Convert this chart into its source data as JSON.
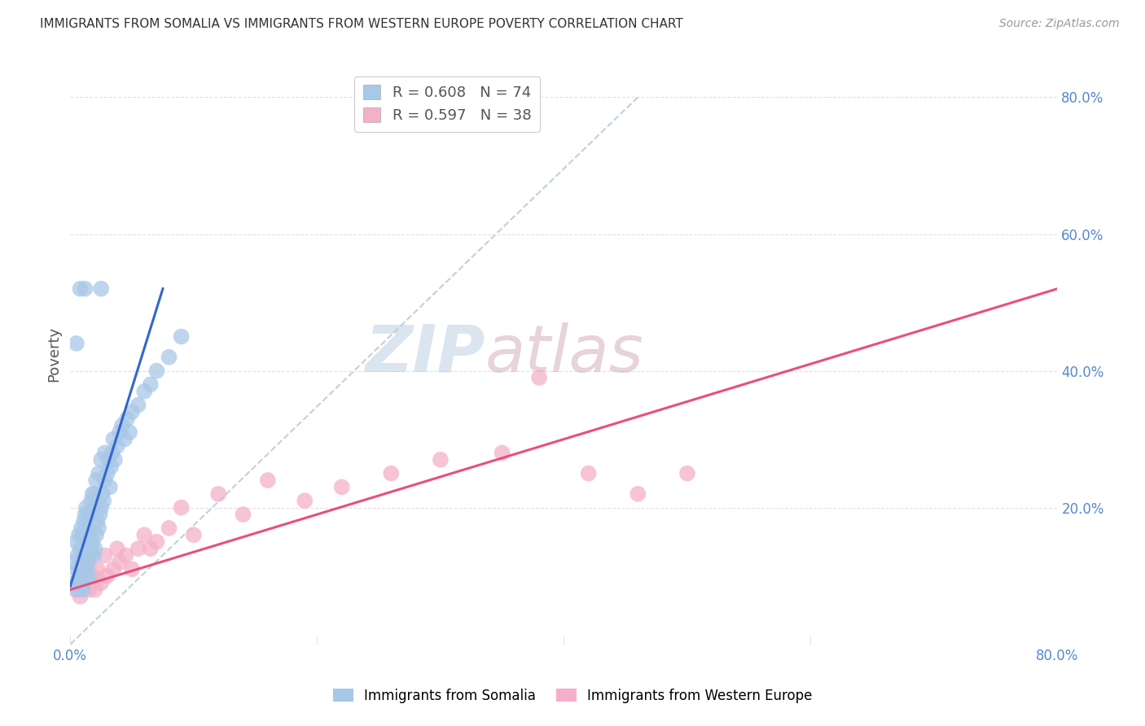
{
  "title": "IMMIGRANTS FROM SOMALIA VS IMMIGRANTS FROM WESTERN EUROPE POVERTY CORRELATION CHART",
  "source": "Source: ZipAtlas.com",
  "ylabel": "Poverty",
  "watermark_zip": "ZIP",
  "watermark_atlas": "atlas",
  "legend_line1": "R = 0.608   N = 74",
  "legend_line2": "R = 0.597   N = 38",
  "somalia_color": "#a8c8e8",
  "western_color": "#f4b0c8",
  "somalia_line_color": "#3366cc",
  "western_line_color": "#e8507a",
  "diagonal_color": "#c0d0e0",
  "background_color": "#ffffff",
  "grid_color": "#e0e0e0",
  "tick_color": "#5588cc",
  "xlim": [
    0.0,
    0.8
  ],
  "ylim": [
    0.0,
    0.85
  ],
  "title_fontsize": 11,
  "somalia_x": [
    0.003,
    0.004,
    0.005,
    0.005,
    0.006,
    0.006,
    0.007,
    0.007,
    0.008,
    0.008,
    0.009,
    0.009,
    0.01,
    0.01,
    0.01,
    0.011,
    0.011,
    0.011,
    0.012,
    0.012,
    0.012,
    0.013,
    0.013,
    0.013,
    0.014,
    0.014,
    0.015,
    0.015,
    0.016,
    0.016,
    0.017,
    0.017,
    0.018,
    0.018,
    0.019,
    0.019,
    0.02,
    0.02,
    0.021,
    0.021,
    0.022,
    0.023,
    0.023,
    0.024,
    0.025,
    0.025,
    0.026,
    0.027,
    0.028,
    0.028,
    0.03,
    0.031,
    0.032,
    0.033,
    0.034,
    0.035,
    0.036,
    0.038,
    0.04,
    0.042,
    0.044,
    0.046,
    0.048,
    0.05,
    0.055,
    0.06,
    0.065,
    0.07,
    0.08,
    0.09,
    0.005,
    0.008,
    0.012,
    0.025
  ],
  "somalia_y": [
    0.12,
    0.09,
    0.11,
    0.15,
    0.08,
    0.13,
    0.1,
    0.16,
    0.09,
    0.14,
    0.11,
    0.17,
    0.08,
    0.12,
    0.16,
    0.09,
    0.13,
    0.18,
    0.1,
    0.14,
    0.19,
    0.11,
    0.15,
    0.2,
    0.12,
    0.17,
    0.1,
    0.16,
    0.13,
    0.19,
    0.14,
    0.21,
    0.15,
    0.22,
    0.13,
    0.2,
    0.14,
    0.22,
    0.16,
    0.24,
    0.18,
    0.17,
    0.25,
    0.19,
    0.2,
    0.27,
    0.22,
    0.21,
    0.24,
    0.28,
    0.25,
    0.27,
    0.23,
    0.26,
    0.28,
    0.3,
    0.27,
    0.29,
    0.31,
    0.32,
    0.3,
    0.33,
    0.31,
    0.34,
    0.35,
    0.37,
    0.38,
    0.4,
    0.42,
    0.45,
    0.44,
    0.52,
    0.52,
    0.52
  ],
  "western_x": [
    0.004,
    0.006,
    0.008,
    0.008,
    0.01,
    0.012,
    0.015,
    0.015,
    0.018,
    0.02,
    0.022,
    0.025,
    0.028,
    0.03,
    0.035,
    0.038,
    0.04,
    0.045,
    0.05,
    0.055,
    0.06,
    0.065,
    0.07,
    0.08,
    0.09,
    0.1,
    0.12,
    0.14,
    0.16,
    0.19,
    0.22,
    0.26,
    0.3,
    0.35,
    0.38,
    0.42,
    0.46,
    0.5
  ],
  "western_y": [
    0.08,
    0.09,
    0.07,
    0.11,
    0.09,
    0.1,
    0.08,
    0.12,
    0.1,
    0.08,
    0.11,
    0.09,
    0.13,
    0.1,
    0.11,
    0.14,
    0.12,
    0.13,
    0.11,
    0.14,
    0.16,
    0.14,
    0.15,
    0.17,
    0.2,
    0.16,
    0.22,
    0.19,
    0.24,
    0.21,
    0.23,
    0.25,
    0.27,
    0.28,
    0.39,
    0.25,
    0.22,
    0.25
  ],
  "somalia_line": {
    "x0": 0.0,
    "x1": 0.075,
    "y0": 0.085,
    "y1": 0.52
  },
  "western_line": {
    "x0": 0.0,
    "x1": 0.8,
    "y0": 0.08,
    "y1": 0.52
  },
  "diag_line": {
    "x0": 0.0,
    "x1": 0.46,
    "y0": 0.0,
    "y1": 0.8
  }
}
